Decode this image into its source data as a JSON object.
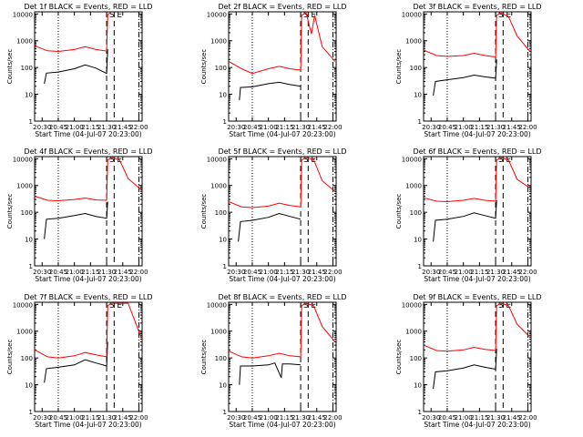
{
  "colors": {
    "events": "#000000",
    "lld": "#ff0000",
    "axis": "#000000"
  },
  "ylabel": "Counts/sec",
  "xlabel": "Start Time (04-Jul-07 20:23:00)",
  "x_ticks": [
    "20:30",
    "20:45",
    "21:00",
    "21:15",
    "21:30",
    "21:45",
    "22:00"
  ],
  "y_ticks": [
    "1",
    "10",
    "100",
    "1000",
    "10000"
  ],
  "chart_data": [
    {
      "type": "line",
      "title": "Det 1f BLACK = Events, RED = LLD",
      "xlim": [
        "20:23",
        "22:03"
      ],
      "ylim": [
        1,
        12000
      ],
      "yscale": "log",
      "event_markers": [
        {
          "time": "21:30",
          "label": "S"
        },
        {
          "time": "21:37",
          "label": "E"
        },
        {
          "time": "22:00",
          "label": ""
        }
      ],
      "series": [
        {
          "name": "Events",
          "x": [
            "20:32",
            "20:34",
            "20:45",
            "21:00",
            "21:10",
            "21:20",
            "21:30",
            "21:31"
          ],
          "y": [
            25,
            62,
            68,
            90,
            125,
            95,
            60,
            480
          ]
        },
        {
          "name": "LLD",
          "x": [
            "20:23",
            "20:35",
            "20:45",
            "21:00",
            "21:10",
            "21:20",
            "21:30",
            "21:31",
            "21:33"
          ],
          "y": [
            650,
            420,
            400,
            470,
            600,
            470,
            410,
            9000,
            11000
          ]
        }
      ]
    },
    {
      "type": "line",
      "title": "Det 2f BLACK = Events, RED = LLD",
      "xlim": [
        "20:23",
        "22:03"
      ],
      "ylim": [
        1,
        12000
      ],
      "yscale": "log",
      "event_markers": [
        {
          "time": "21:30",
          "label": "S"
        },
        {
          "time": "21:37",
          "label": "E"
        },
        {
          "time": "22:00",
          "label": ""
        }
      ],
      "series": [
        {
          "name": "Events",
          "x": [
            "20:33",
            "20:34",
            "20:45",
            "21:00",
            "21:10",
            "21:20",
            "21:30"
          ],
          "y": [
            6,
            18,
            19,
            25,
            28,
            23,
            20
          ]
        },
        {
          "name": "LLD",
          "x": [
            "20:23",
            "20:35",
            "20:45",
            "21:00",
            "21:10",
            "21:20",
            "21:30",
            "21:31",
            "21:35",
            "21:40",
            "21:43",
            "21:50",
            "22:02"
          ],
          "y": [
            170,
            90,
            60,
            90,
            110,
            90,
            80,
            9000,
            11000,
            1800,
            9000,
            600,
            170
          ]
        }
      ]
    },
    {
      "type": "line",
      "title": "Det 3f BLACK = Events, RED = LLD",
      "xlim": [
        "20:23",
        "22:03"
      ],
      "ylim": [
        1,
        12000
      ],
      "yscale": "log",
      "event_markers": [
        {
          "time": "21:30",
          "label": "S"
        },
        {
          "time": "21:37",
          "label": "E"
        },
        {
          "time": "22:00",
          "label": ""
        }
      ],
      "series": [
        {
          "name": "Events",
          "x": [
            "20:32",
            "20:34",
            "20:45",
            "21:00",
            "21:10",
            "21:20",
            "21:30",
            "21:31"
          ],
          "y": [
            9,
            30,
            35,
            42,
            52,
            45,
            40,
            200
          ]
        },
        {
          "name": "LLD",
          "x": [
            "20:23",
            "20:35",
            "20:45",
            "21:00",
            "21:10",
            "21:20",
            "21:30",
            "21:31",
            "21:35",
            "21:42",
            "21:50",
            "22:02"
          ],
          "y": [
            450,
            280,
            260,
            280,
            340,
            280,
            250,
            9000,
            11000,
            8000,
            1500,
            400
          ]
        }
      ]
    },
    {
      "type": "line",
      "title": "Det 4f BLACK = Events, RED = LLD",
      "xlim": [
        "20:23",
        "22:03"
      ],
      "ylim": [
        1,
        12000
      ],
      "yscale": "log",
      "event_markers": [
        {
          "time": "21:30",
          "label": "S"
        },
        {
          "time": "21:37",
          "label": "E"
        },
        {
          "time": "22:00",
          "label": ""
        }
      ],
      "series": [
        {
          "name": "Events",
          "x": [
            "20:32",
            "20:34",
            "20:45",
            "21:00",
            "21:10",
            "21:20",
            "21:30",
            "21:31"
          ],
          "y": [
            10,
            55,
            60,
            75,
            90,
            70,
            60,
            250
          ]
        },
        {
          "name": "LLD",
          "x": [
            "20:23",
            "20:35",
            "20:45",
            "21:00",
            "21:10",
            "21:20",
            "21:30",
            "21:31",
            "21:35",
            "21:42",
            "21:50",
            "22:02"
          ],
          "y": [
            400,
            280,
            270,
            300,
            340,
            290,
            280,
            9000,
            11000,
            9000,
            1800,
            700
          ]
        }
      ]
    },
    {
      "type": "line",
      "title": "Det 5f BLACK = Events, RED = LLD",
      "xlim": [
        "20:23",
        "22:03"
      ],
      "ylim": [
        1,
        12000
      ],
      "yscale": "log",
      "event_markers": [
        {
          "time": "21:30",
          "label": "S"
        },
        {
          "time": "21:37",
          "label": "E"
        },
        {
          "time": "22:00",
          "label": ""
        }
      ],
      "series": [
        {
          "name": "Events",
          "x": [
            "20:32",
            "20:34",
            "20:45",
            "21:00",
            "21:10",
            "21:20",
            "21:30"
          ],
          "y": [
            8,
            45,
            50,
            65,
            90,
            70,
            55
          ]
        },
        {
          "name": "LLD",
          "x": [
            "20:23",
            "20:35",
            "20:45",
            "21:00",
            "21:10",
            "21:20",
            "21:30",
            "21:31",
            "21:35",
            "21:42",
            "21:50",
            "22:02"
          ],
          "y": [
            250,
            160,
            150,
            170,
            220,
            180,
            160,
            9000,
            11000,
            9500,
            1500,
            600
          ]
        }
      ]
    },
    {
      "type": "line",
      "title": "Det 6f BLACK = Events, RED = LLD",
      "xlim": [
        "20:23",
        "22:03"
      ],
      "ylim": [
        1,
        12000
      ],
      "yscale": "log",
      "event_markers": [
        {
          "time": "21:30",
          "label": "S"
        },
        {
          "time": "21:37",
          "label": "E"
        },
        {
          "time": "22:00",
          "label": ""
        }
      ],
      "series": [
        {
          "name": "Events",
          "x": [
            "20:32",
            "20:34",
            "20:45",
            "21:00",
            "21:10",
            "21:20",
            "21:30",
            "21:31"
          ],
          "y": [
            8,
            50,
            55,
            70,
            95,
            75,
            60,
            280
          ]
        },
        {
          "name": "LLD",
          "x": [
            "20:23",
            "20:35",
            "20:45",
            "21:00",
            "21:10",
            "21:20",
            "21:30",
            "21:31",
            "21:35",
            "21:42",
            "21:50",
            "22:02"
          ],
          "y": [
            350,
            260,
            250,
            280,
            330,
            280,
            260,
            9000,
            11000,
            9000,
            1700,
            800
          ]
        }
      ]
    },
    {
      "type": "line",
      "title": "Det 7f BLACK = Events, RED = LLD",
      "xlim": [
        "20:23",
        "22:03"
      ],
      "ylim": [
        1,
        12000
      ],
      "yscale": "log",
      "event_markers": [
        {
          "time": "21:30",
          "label": "S"
        },
        {
          "time": "21:37",
          "label": "E"
        },
        {
          "time": "22:00",
          "label": ""
        }
      ],
      "series": [
        {
          "name": "Events",
          "x": [
            "20:32",
            "20:34",
            "20:45",
            "21:00",
            "21:10",
            "21:20",
            "21:30",
            "21:31"
          ],
          "y": [
            12,
            40,
            45,
            55,
            85,
            65,
            50,
            400
          ]
        },
        {
          "name": "LLD",
          "x": [
            "20:23",
            "20:35",
            "20:45",
            "21:00",
            "21:10",
            "21:20",
            "21:30",
            "21:31",
            "21:35",
            "21:50",
            "22:02"
          ],
          "y": [
            200,
            110,
            100,
            120,
            160,
            130,
            110,
            9000,
            11000,
            11000,
            600
          ]
        }
      ]
    },
    {
      "type": "line",
      "title": "Det 8f BLACK = Events, RED = LLD",
      "xlim": [
        "20:23",
        "22:03"
      ],
      "ylim": [
        1,
        12000
      ],
      "yscale": "log",
      "event_markers": [
        {
          "time": "21:30",
          "label": "S"
        },
        {
          "time": "21:37",
          "label": "E"
        },
        {
          "time": "22:00",
          "label": ""
        }
      ],
      "series": [
        {
          "name": "Events",
          "x": [
            "20:33",
            "20:34",
            "20:45",
            "21:00",
            "21:06",
            "21:12",
            "21:13",
            "21:20",
            "21:30"
          ],
          "y": [
            10,
            50,
            50,
            55,
            65,
            18,
            60,
            60,
            55
          ]
        },
        {
          "name": "LLD",
          "x": [
            "20:23",
            "20:35",
            "20:45",
            "21:00",
            "21:10",
            "21:20",
            "21:30",
            "21:31",
            "21:35",
            "21:42",
            "21:50",
            "22:02"
          ],
          "y": [
            180,
            110,
            100,
            120,
            150,
            120,
            110,
            9000,
            11000,
            9000,
            1500,
            400
          ]
        }
      ]
    },
    {
      "type": "line",
      "title": "Det 9f BLACK = Events, RED = LLD",
      "xlim": [
        "20:23",
        "22:03"
      ],
      "ylim": [
        1,
        12000
      ],
      "yscale": "log",
      "event_markers": [
        {
          "time": "21:30",
          "label": "S"
        },
        {
          "time": "21:37",
          "label": "E"
        },
        {
          "time": "22:00",
          "label": ""
        }
      ],
      "series": [
        {
          "name": "Events",
          "x": [
            "20:32",
            "20:34",
            "20:45",
            "21:00",
            "21:10",
            "21:20",
            "21:30",
            "21:31"
          ],
          "y": [
            7,
            30,
            33,
            42,
            55,
            45,
            38,
            220
          ]
        },
        {
          "name": "LLD",
          "x": [
            "20:23",
            "20:35",
            "20:45",
            "21:00",
            "21:10",
            "21:20",
            "21:30",
            "21:31",
            "21:35",
            "21:42",
            "21:50",
            "22:02"
          ],
          "y": [
            300,
            190,
            180,
            200,
            250,
            210,
            190,
            9000,
            11000,
            9000,
            1800,
            600
          ]
        }
      ]
    }
  ]
}
